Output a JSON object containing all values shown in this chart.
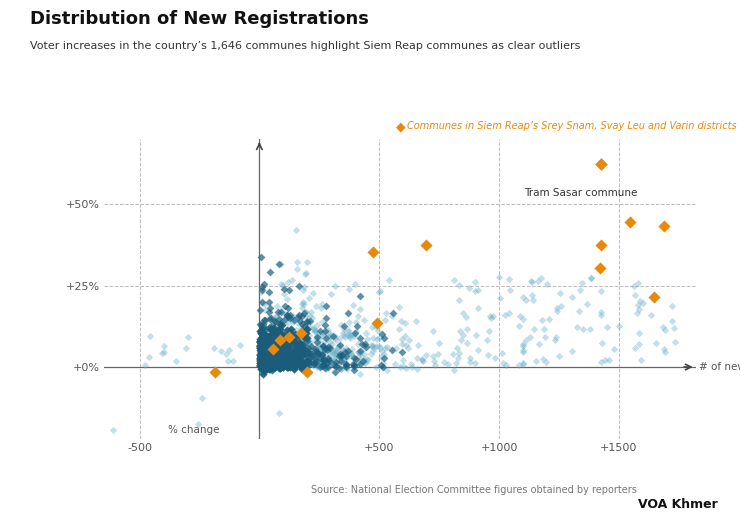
{
  "title": "Distribution of New Registrations",
  "subtitle": "Voter increases in the country’s 1,646 communes highlight Siem Reap communes as clear outliers",
  "legend_label": "Communes in Siem Reap’s Srey Snam, Svay Leu and Varin districts",
  "annotation_tram": "Tram Sasar commune",
  "xlabel": "# of new voters",
  "ylabel": "% change",
  "source": "Source: National Election Committee figures obtained by reporters",
  "watermark": "VOA Khmer",
  "blue_color": "#6aafc8",
  "dark_blue_color": "#1a5c7a",
  "orange_color": "#e8890c",
  "bg_color": "#ffffff",
  "grid_color": "#bbbbbb",
  "title_color": "#111111",
  "subtitle_color": "#333333",
  "xlim": [
    -650,
    1820
  ],
  "ylim": [
    -0.22,
    0.7
  ],
  "ytick_vals": [
    0.0,
    0.25,
    0.5
  ],
  "ytick_labels": [
    "+0%",
    "+25%",
    "+50%"
  ],
  "xtick_vals": [
    -500,
    500,
    1000,
    1500
  ],
  "xtick_labels": [
    "-500",
    "+500",
    "+1000",
    "+1500"
  ],
  "orange_points": [
    [
      200,
      -0.015
    ],
    [
      -185,
      -0.015
    ],
    [
      55,
      0.055
    ],
    [
      85,
      0.082
    ],
    [
      125,
      0.092
    ],
    [
      175,
      0.105
    ],
    [
      490,
      0.135
    ],
    [
      475,
      0.355
    ],
    [
      695,
      0.375
    ],
    [
      1420,
      0.305
    ],
    [
      1425,
      0.375
    ],
    [
      1545,
      0.445
    ],
    [
      1690,
      0.435
    ],
    [
      1645,
      0.215
    ]
  ],
  "tram_sasar_point": [
    1425,
    0.625
  ],
  "seed": 42
}
